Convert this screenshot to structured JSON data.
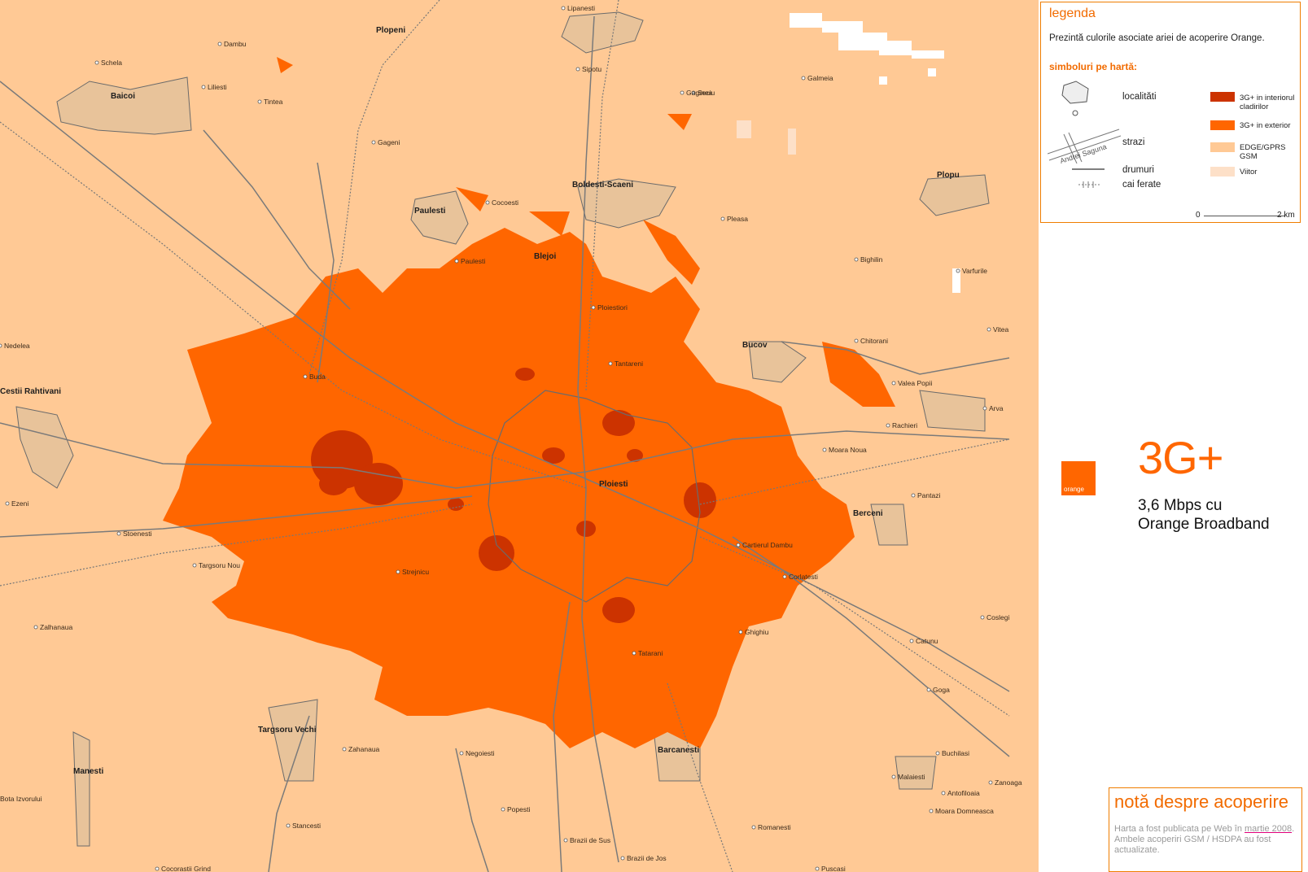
{
  "colors": {
    "background_edge_gprs": "#ffc995",
    "coverage_3g_exterior": "#ff6600",
    "coverage_3g_indoor": "#cc3300",
    "future": "#fde0c8",
    "roads": "#7a7a7a",
    "brand": "#ff6600"
  },
  "map": {
    "places": [
      {
        "name": "Lipanesti",
        "size": "small"
      },
      {
        "name": "Plopeni",
        "size": "big"
      },
      {
        "name": "Dambu",
        "size": "small"
      },
      {
        "name": "Schela",
        "size": "small"
      },
      {
        "name": "Baicoi",
        "size": "big"
      },
      {
        "name": "Liliesti",
        "size": "small"
      },
      {
        "name": "Tintea",
        "size": "small"
      },
      {
        "name": "Sipotu",
        "size": "small"
      },
      {
        "name": "Seciu",
        "size": "small"
      },
      {
        "name": "Gaginea",
        "size": "small"
      },
      {
        "name": "Gageni",
        "size": "small"
      },
      {
        "name": "Cocoesti",
        "size": "small"
      },
      {
        "name": "Boldesti-Scaeni",
        "size": "big"
      },
      {
        "name": "Paulesti",
        "size": "big"
      },
      {
        "name": "Plopu",
        "size": "big"
      },
      {
        "name": "Pleasa",
        "size": "small"
      },
      {
        "name": "Blejoi",
        "size": "big"
      },
      {
        "name": "Paulesti",
        "size": "small"
      },
      {
        "name": "Bighilin",
        "size": "small"
      },
      {
        "name": "Varfurile",
        "size": "small"
      },
      {
        "name": "Ploiestiori",
        "size": "small"
      },
      {
        "name": "Nedelea",
        "size": "small"
      },
      {
        "name": "Chitorani",
        "size": "small"
      },
      {
        "name": "Bucov",
        "size": "big"
      },
      {
        "name": "Vitea",
        "size": "small"
      },
      {
        "name": "Tantareni",
        "size": "small"
      },
      {
        "name": "Buda",
        "size": "small"
      },
      {
        "name": "Valea Popii",
        "size": "small"
      },
      {
        "name": "Cestii Rahtivani",
        "size": "big"
      },
      {
        "name": "Arva",
        "size": "small"
      },
      {
        "name": "Rachieri",
        "size": "small"
      },
      {
        "name": "Moara Noua",
        "size": "small"
      },
      {
        "name": "Ploiesti",
        "size": "big"
      },
      {
        "name": "Ezeni",
        "size": "small"
      },
      {
        "name": "Pantazi",
        "size": "small"
      },
      {
        "name": "Berceni",
        "size": "big"
      },
      {
        "name": "Stoenesti",
        "size": "small"
      },
      {
        "name": "Cartierul Dambu",
        "size": "small"
      },
      {
        "name": "Targsoru Nou",
        "size": "small"
      },
      {
        "name": "Strejnicu",
        "size": "small"
      },
      {
        "name": "Corlatesti",
        "size": "small"
      },
      {
        "name": "Zalhanaua",
        "size": "small"
      },
      {
        "name": "Coslegi",
        "size": "small"
      },
      {
        "name": "Ghighiu",
        "size": "small"
      },
      {
        "name": "Tatarani",
        "size": "small"
      },
      {
        "name": "Catunu",
        "size": "small"
      },
      {
        "name": "Goga",
        "size": "small"
      },
      {
        "name": "Targsoru Vechi",
        "size": "big"
      },
      {
        "name": "Zahanaua",
        "size": "small"
      },
      {
        "name": "Negoiesti",
        "size": "small"
      },
      {
        "name": "Barcanesti",
        "size": "big"
      },
      {
        "name": "Buchilasi",
        "size": "small"
      },
      {
        "name": "Manesti",
        "size": "big"
      },
      {
        "name": "Malaiesti",
        "size": "small"
      },
      {
        "name": "Zanoaga",
        "size": "small"
      },
      {
        "name": "Bota Izvorului",
        "size": "small"
      },
      {
        "name": "Popesti",
        "size": "small"
      },
      {
        "name": "Antofiloaia",
        "size": "small"
      },
      {
        "name": "Moara Domneasca",
        "size": "small"
      },
      {
        "name": "Stancesti",
        "size": "small"
      },
      {
        "name": "Romanesti",
        "size": "small"
      },
      {
        "name": "Brazii de Sus",
        "size": "small"
      },
      {
        "name": "Brazii de Jos",
        "size": "small"
      },
      {
        "name": "Cocorastii Grind",
        "size": "small"
      },
      {
        "name": "Puscasi",
        "size": "small"
      },
      {
        "name": "Galmeia",
        "size": "small"
      }
    ]
  },
  "legend": {
    "title": "legenda",
    "description": "Prezintă culorile asociate ariei de acoperire Orange.",
    "symbols_title": "simboluri pe hartă:",
    "symbols": {
      "localities": "localităti",
      "streets": "strazi",
      "street_sample": "Andrei Saguna",
      "roads": "drumuri",
      "railways": "cai ferate"
    },
    "swatches": [
      {
        "label": "3G+ in interiorul cladirilor",
        "color": "#cc3300"
      },
      {
        "label": "3G+ in exterior",
        "color": "#ff6600"
      },
      {
        "label": "EDGE/GPRS GSM",
        "color": "#ffc995"
      },
      {
        "label": "Viitor",
        "color": "#fde0c8"
      }
    ],
    "scale": {
      "start": "0",
      "end": "2 km"
    }
  },
  "brand": {
    "logo_text": "orange",
    "logo_icon": "orange-logo-icon"
  },
  "product": {
    "name": "3G+",
    "line1": "3,6 Mbps cu",
    "line2": "Orange Broadband"
  },
  "note": {
    "title": "notă despre acoperire",
    "text_before": "Harta a fost publicata pe Web în ",
    "link": "martie 2008",
    "text_after": ". Ambele acoperiri GSM / HSDPA au fost actualizate."
  }
}
